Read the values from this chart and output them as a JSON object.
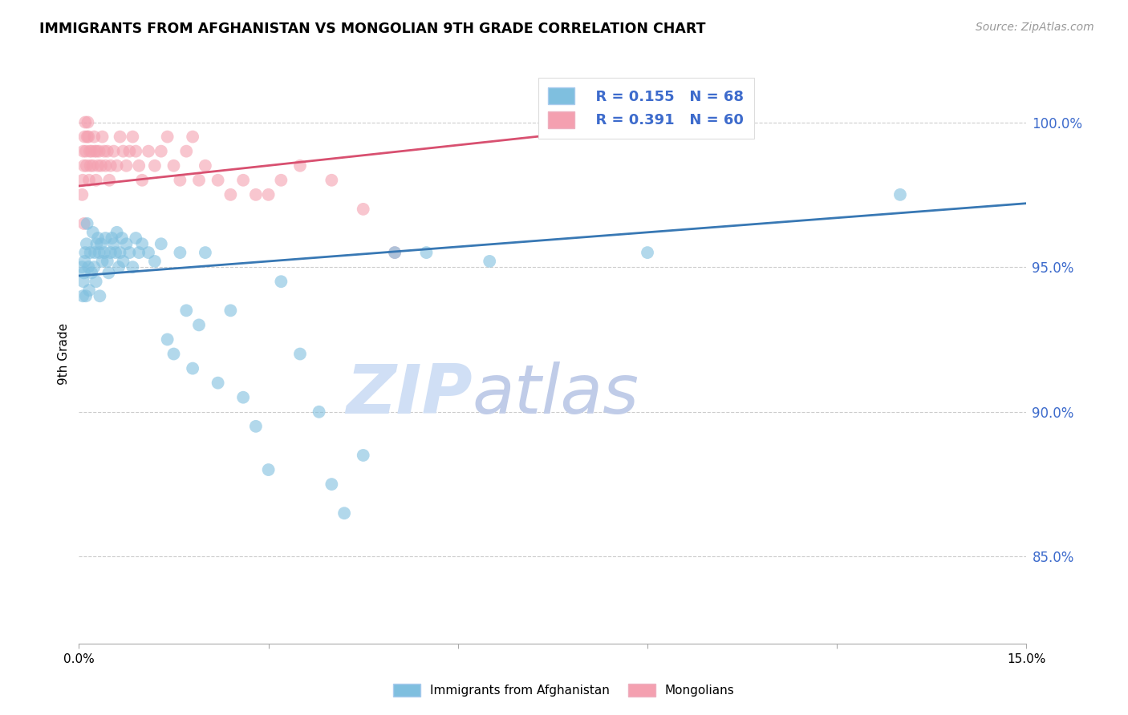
{
  "title": "IMMIGRANTS FROM AFGHANISTAN VS MONGOLIAN 9TH GRADE CORRELATION CHART",
  "source": "Source: ZipAtlas.com",
  "ylabel": "9th Grade",
  "xlim": [
    0.0,
    15.0
  ],
  "ylim": [
    82.0,
    102.0
  ],
  "xticks": [
    0.0,
    3.0,
    6.0,
    9.0,
    12.0,
    15.0
  ],
  "xticklabels": [
    "0.0%",
    "",
    "",
    "",
    "",
    "15.0%"
  ],
  "yticks_right": [
    85.0,
    90.0,
    95.0,
    100.0
  ],
  "yticklabels_right": [
    "85.0%",
    "90.0%",
    "95.0%",
    "100.0%"
  ],
  "blue_color": "#7fbfdf",
  "pink_color": "#f4a0b0",
  "blue_line_color": "#3878b4",
  "pink_line_color": "#d85070",
  "legend_blue_r": "R = 0.155",
  "legend_blue_n": "N = 68",
  "legend_pink_r": "R = 0.391",
  "legend_pink_n": "N = 60",
  "watermark": "ZIPatlas",
  "watermark_color_zip": "#d0dff5",
  "watermark_color_atlas": "#c0cce8",
  "legend_label_blue": "Immigrants from Afghanistan",
  "legend_label_pink": "Mongolians",
  "blue_x": [
    0.05,
    0.07,
    0.08,
    0.09,
    0.1,
    0.11,
    0.12,
    0.13,
    0.15,
    0.16,
    0.18,
    0.2,
    0.22,
    0.24,
    0.25,
    0.27,
    0.28,
    0.3,
    0.32,
    0.33,
    0.35,
    0.37,
    0.4,
    0.42,
    0.45,
    0.47,
    0.5,
    0.52,
    0.55,
    0.58,
    0.6,
    0.63,
    0.65,
    0.68,
    0.7,
    0.75,
    0.8,
    0.85,
    0.9,
    0.95,
    1.0,
    1.1,
    1.2,
    1.3,
    1.4,
    1.5,
    1.6,
    1.7,
    1.8,
    1.9,
    2.0,
    2.2,
    2.4,
    2.6,
    2.8,
    3.0,
    3.2,
    3.5,
    3.8,
    4.0,
    4.2,
    4.5,
    5.0,
    5.5,
    6.5,
    9.0,
    13.0,
    0.06
  ],
  "blue_y": [
    95.0,
    94.5,
    94.8,
    95.2,
    95.5,
    94.0,
    95.8,
    96.5,
    95.0,
    94.2,
    95.5,
    94.8,
    96.2,
    95.0,
    95.5,
    94.5,
    95.8,
    96.0,
    95.5,
    94.0,
    95.8,
    95.2,
    95.5,
    96.0,
    95.2,
    94.8,
    95.5,
    96.0,
    95.8,
    95.5,
    96.2,
    95.0,
    95.5,
    96.0,
    95.2,
    95.8,
    95.5,
    95.0,
    96.0,
    95.5,
    95.8,
    95.5,
    95.2,
    95.8,
    92.5,
    92.0,
    95.5,
    93.5,
    91.5,
    93.0,
    95.5,
    91.0,
    93.5,
    90.5,
    89.5,
    88.0,
    94.5,
    92.0,
    90.0,
    87.5,
    86.5,
    88.5,
    95.5,
    95.5,
    95.2,
    95.5,
    97.5,
    94.0
  ],
  "pink_x": [
    0.05,
    0.06,
    0.07,
    0.08,
    0.09,
    0.1,
    0.11,
    0.12,
    0.13,
    0.14,
    0.15,
    0.16,
    0.17,
    0.18,
    0.2,
    0.22,
    0.24,
    0.25,
    0.27,
    0.28,
    0.3,
    0.32,
    0.35,
    0.37,
    0.4,
    0.42,
    0.45,
    0.48,
    0.5,
    0.55,
    0.6,
    0.65,
    0.7,
    0.75,
    0.8,
    0.85,
    0.9,
    0.95,
    1.0,
    1.1,
    1.2,
    1.3,
    1.4,
    1.5,
    1.6,
    1.7,
    1.8,
    1.9,
    2.0,
    2.2,
    2.4,
    2.6,
    2.8,
    3.0,
    3.2,
    3.5,
    4.0,
    4.5,
    5.0,
    0.08
  ],
  "pink_y": [
    97.5,
    98.0,
    99.0,
    98.5,
    99.5,
    100.0,
    99.0,
    98.5,
    99.5,
    100.0,
    99.5,
    98.0,
    99.0,
    98.5,
    99.0,
    98.5,
    99.5,
    99.0,
    98.0,
    99.0,
    98.5,
    99.0,
    98.5,
    99.5,
    99.0,
    98.5,
    99.0,
    98.0,
    98.5,
    99.0,
    98.5,
    99.5,
    99.0,
    98.5,
    99.0,
    99.5,
    99.0,
    98.5,
    98.0,
    99.0,
    98.5,
    99.0,
    99.5,
    98.5,
    98.0,
    99.0,
    99.5,
    98.0,
    98.5,
    98.0,
    97.5,
    98.0,
    97.5,
    97.5,
    98.0,
    98.5,
    98.0,
    97.0,
    95.5,
    96.5
  ],
  "blue_trendline_x": [
    0.0,
    15.0
  ],
  "blue_trendline_y": [
    94.7,
    97.2
  ],
  "pink_trendline_x": [
    0.0,
    8.5
  ],
  "pink_trendline_y": [
    97.8,
    99.8
  ]
}
